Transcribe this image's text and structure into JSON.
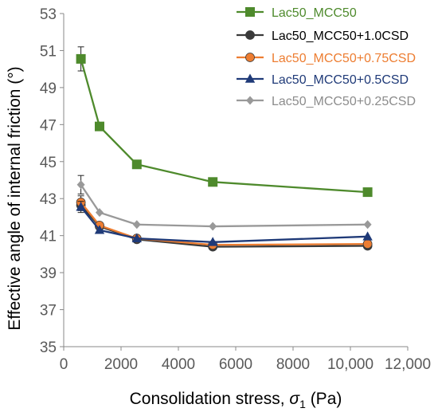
{
  "chart_data": {
    "type": "line",
    "xlabel_main": "Consolidation stress, ",
    "xlabel_symbol": "σ",
    "xlabel_sub": "1",
    "xlabel_unit": " (Pa)",
    "ylabel": "Effective angle of internal friction (°)",
    "xlim": [
      0,
      12000
    ],
    "ylim": [
      35,
      53
    ],
    "x_ticks": [
      0,
      2000,
      4000,
      6000,
      8000,
      10000,
      12000
    ],
    "x_tick_labels": [
      "0",
      "2000",
      "4000",
      "6000",
      "8000",
      "10,000",
      "12,000"
    ],
    "y_ticks": [
      35,
      37,
      39,
      41,
      43,
      45,
      47,
      49,
      51,
      53
    ],
    "y_tick_labels": [
      "35",
      "37",
      "39",
      "41",
      "43",
      "45",
      "47",
      "49",
      "51",
      "53"
    ],
    "grid": false,
    "legend_position": "top-right",
    "series": [
      {
        "name": "Lac50_MCC50",
        "color": "#4e8a2c",
        "text_color": "#4e8a2c",
        "marker": "square",
        "x": [
          600,
          1250,
          2550,
          5200,
          10600
        ],
        "y": [
          50.55,
          46.9,
          44.85,
          43.9,
          43.35
        ],
        "err": [
          0.65,
          0,
          0,
          0,
          0
        ]
      },
      {
        "name": "Lac50_MCC50+1.0CSD",
        "color": "#3a3a3a",
        "text_color": "#000000",
        "marker": "circle",
        "x": [
          600,
          1250,
          2550,
          5200,
          10600
        ],
        "y": [
          42.65,
          41.5,
          40.8,
          40.4,
          40.45
        ],
        "err": [
          0.3,
          0,
          0,
          0,
          0
        ]
      },
      {
        "name": "Lac50_MCC50+0.75CSD",
        "color": "#ed7d31",
        "text_color": "#ed7d31",
        "marker": "circle",
        "x": [
          600,
          1250,
          2550,
          5200,
          10600
        ],
        "y": [
          42.8,
          41.55,
          40.85,
          40.5,
          40.55
        ],
        "err": [
          0.35,
          0,
          0,
          0,
          0
        ]
      },
      {
        "name": "Lac50_MCC50+0.5CSD",
        "color": "#1f3a78",
        "text_color": "#1f3a78",
        "marker": "triangle",
        "x": [
          600,
          1250,
          2550,
          5200,
          10600
        ],
        "y": [
          42.55,
          41.3,
          40.85,
          40.65,
          40.95
        ],
        "err": [
          0.3,
          0,
          0,
          0,
          0
        ]
      },
      {
        "name": "Lac50_MCC50+0.25CSD",
        "color": "#999999",
        "text_color": "#8c8c8c",
        "marker": "diamond",
        "x": [
          600,
          1250,
          2550,
          5200,
          10600
        ],
        "y": [
          43.75,
          42.25,
          41.6,
          41.5,
          41.6
        ],
        "err": [
          0.5,
          0,
          0,
          0,
          0
        ]
      }
    ]
  }
}
